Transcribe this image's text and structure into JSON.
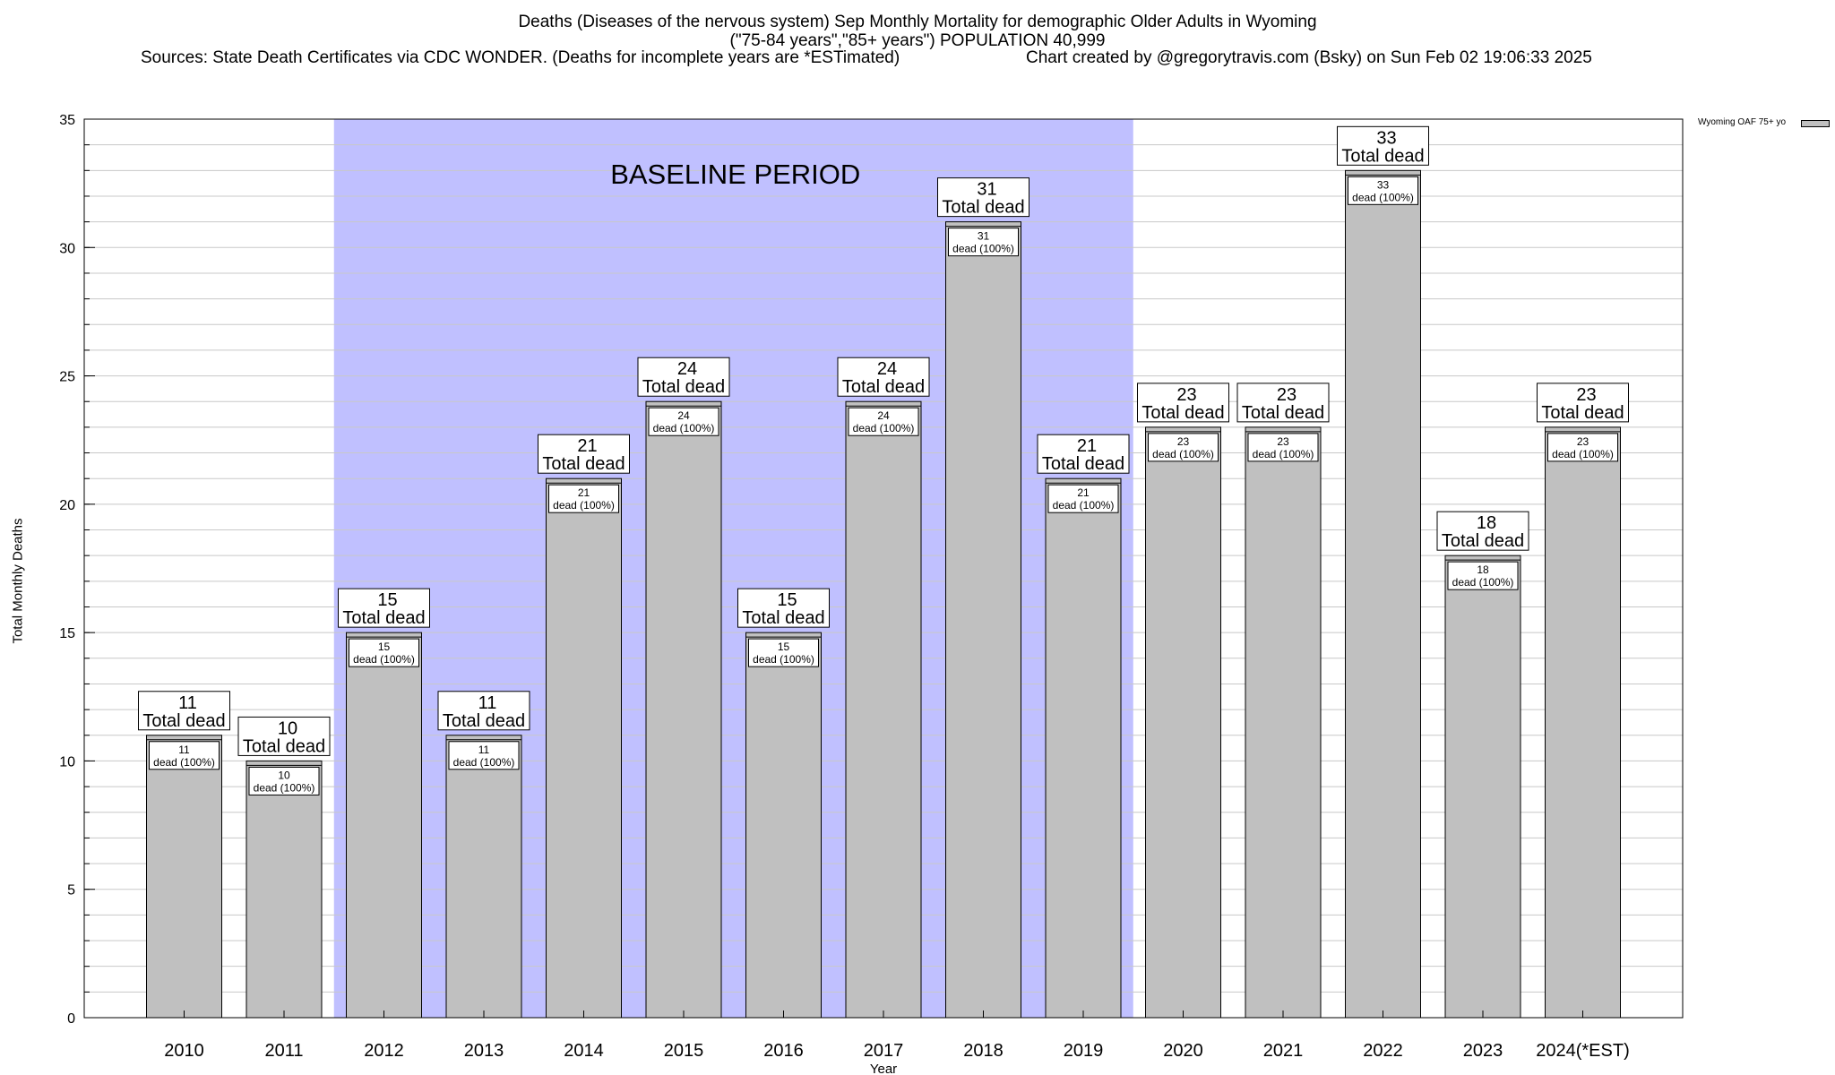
{
  "header": {
    "title_line1": "Deaths (Diseases of the nervous system) Sep Monthly Mortality for demographic Older Adults in Wyoming",
    "title_line2": "(\"75-84 years\",\"85+ years\") POPULATION 40,999",
    "sources": "Sources: State Death Certificates via CDC WONDER. (Deaths for incomplete years are *ESTimated)",
    "credit": "Chart created by @gregorytravis.com (Bsky) on Sun Feb 02 19:06:33 2025"
  },
  "legend": {
    "label": "Wyoming OAF 75+ yo"
  },
  "chart_data": {
    "type": "bar",
    "xlabel": "Year",
    "ylabel": "Total Monthly Deaths",
    "ylim": [
      0,
      35
    ],
    "yticks": [
      0,
      5,
      10,
      15,
      20,
      25,
      30,
      35
    ],
    "grid": true,
    "legend_position": "top-right",
    "categories": [
      "2010",
      "2011",
      "2012",
      "2013",
      "2014",
      "2015",
      "2016",
      "2017",
      "2018",
      "2019",
      "2020",
      "2021",
      "2022",
      "2023",
      "2024(*EST)"
    ],
    "series": [
      {
        "name": "Wyoming OAF 75+ yo",
        "values": [
          11,
          10,
          15,
          11,
          21,
          24,
          15,
          24,
          31,
          21,
          23,
          23,
          33,
          18,
          23
        ]
      }
    ],
    "total_label_suffix": "Total dead",
    "inner_label_suffix": "dead (100%)",
    "baseline": {
      "label": "BASELINE PERIOD",
      "start": "2012",
      "end": "2019"
    },
    "colors": {
      "bar": "#c0c0c0",
      "baseline": "#c0c0ff",
      "grid": "#c8c8c8"
    }
  }
}
